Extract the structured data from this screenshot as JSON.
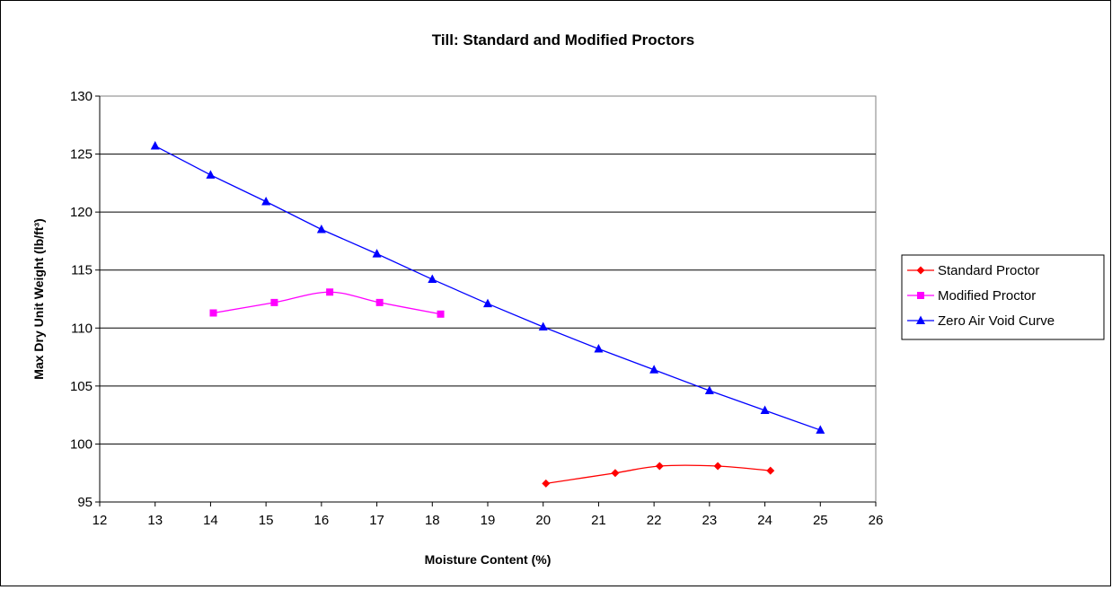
{
  "chart_data": {
    "type": "line",
    "title": "Till: Standard and Modified Proctors",
    "xlabel": "Moisture Content (%)",
    "ylabel": "Max Dry Unit Weight (lb/ft³)",
    "xlim": [
      12,
      26
    ],
    "ylim": [
      95,
      130
    ],
    "x_ticks": [
      "12",
      "13",
      "14",
      "15",
      "16",
      "17",
      "18",
      "19",
      "20",
      "21",
      "22",
      "23",
      "24",
      "25",
      "26"
    ],
    "y_ticks": [
      "95",
      "100",
      "105",
      "110",
      "115",
      "120",
      "125",
      "130"
    ],
    "grid": "horizontal",
    "legend_position": "right",
    "series": [
      {
        "name": "Standard Proctor",
        "color": "#ff0000",
        "marker": "diamond",
        "smooth": true,
        "points": [
          [
            20.05,
            96.6
          ],
          [
            21.3,
            97.5
          ],
          [
            22.1,
            98.1
          ],
          [
            23.15,
            98.1
          ],
          [
            24.1,
            97.7
          ]
        ]
      },
      {
        "name": "Modified Proctor",
        "color": "#ff00ff",
        "marker": "square",
        "smooth": true,
        "points": [
          [
            14.05,
            111.3
          ],
          [
            15.15,
            112.2
          ],
          [
            16.15,
            113.1
          ],
          [
            17.05,
            112.2
          ],
          [
            18.15,
            111.2
          ]
        ]
      },
      {
        "name": "Zero Air Void Curve",
        "color": "#0000ff",
        "marker": "triangle",
        "smooth": false,
        "points": [
          [
            13,
            125.7
          ],
          [
            14,
            123.2
          ],
          [
            15,
            120.9
          ],
          [
            16,
            118.5
          ],
          [
            17,
            116.4
          ],
          [
            18,
            114.2
          ],
          [
            19,
            112.1
          ],
          [
            20,
            110.1
          ],
          [
            21,
            108.2
          ],
          [
            22,
            106.4
          ],
          [
            23,
            104.6
          ],
          [
            24,
            102.9
          ],
          [
            25,
            101.2
          ]
        ]
      }
    ]
  }
}
